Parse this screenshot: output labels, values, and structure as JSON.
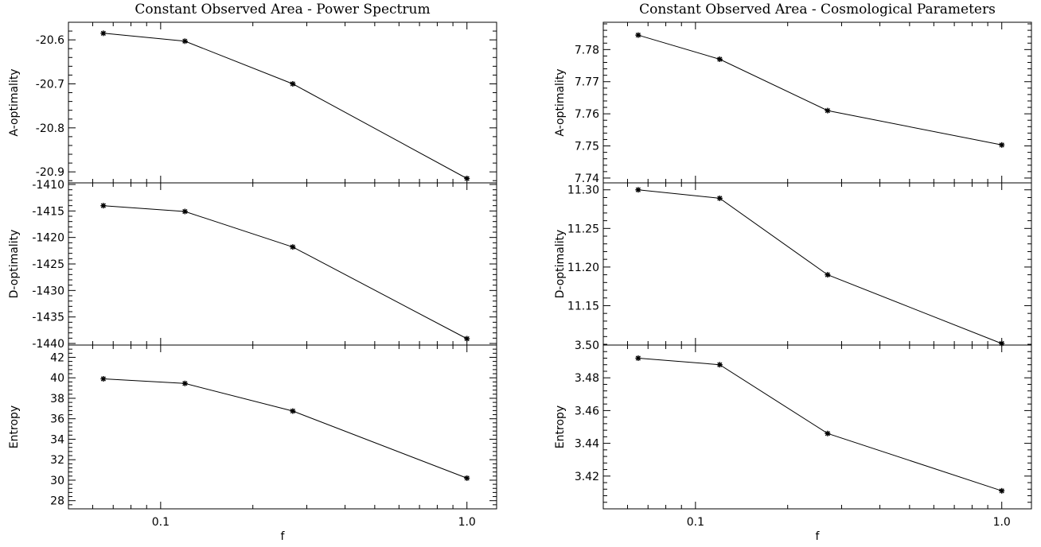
{
  "figure": {
    "panels": [
      {
        "id": "left",
        "title": "Constant Observed Area - Power Spectrum",
        "xlabel": "f"
      },
      {
        "id": "right",
        "title": "Constant Observed Area - Cosmological Parameters",
        "xlabel": "f"
      }
    ]
  },
  "chart_data": [
    {
      "type": "line",
      "panel": "left",
      "row": 0,
      "title": "Constant Observed Area - Power Spectrum",
      "xlabel": "",
      "ylabel": "A-optimality",
      "xscale": "log",
      "xlim": [
        0.05,
        1.25
      ],
      "xticks": [
        0.1,
        1.0
      ],
      "xtick_labels": [
        "",
        ""
      ],
      "ylim": [
        -20.925,
        -20.56
      ],
      "yticks": [
        -20.6,
        -20.7,
        -20.8,
        -20.9
      ],
      "ytick_labels": [
        "-20.6",
        "-20.7",
        "-20.8",
        "-20.9"
      ],
      "marker": "asterisk",
      "grid": false,
      "series": [
        {
          "x": [
            0.065,
            0.12,
            0.27,
            1.0
          ],
          "y": [
            -20.585,
            -20.603,
            -20.7,
            -20.915
          ]
        }
      ]
    },
    {
      "type": "line",
      "panel": "left",
      "row": 1,
      "xlabel": "",
      "ylabel": "D-optimality",
      "xscale": "log",
      "xlim": [
        0.05,
        1.25
      ],
      "xticks": [
        0.1,
        1.0
      ],
      "xtick_labels": [
        "",
        ""
      ],
      "ylim": [
        -1440.3,
        -1409.7
      ],
      "yticks": [
        -1410,
        -1415,
        -1420,
        -1425,
        -1430,
        -1435,
        -1440
      ],
      "ytick_labels": [
        "-1410",
        "-1415",
        "-1420",
        "-1425",
        "-1430",
        "-1435",
        "-1440"
      ],
      "marker": "asterisk",
      "grid": false,
      "series": [
        {
          "x": [
            0.065,
            0.12,
            0.27,
            1.0
          ],
          "y": [
            -1414.0,
            -1415.1,
            -1421.8,
            -1439.1
          ]
        }
      ]
    },
    {
      "type": "line",
      "panel": "left",
      "row": 2,
      "xlabel": "f",
      "ylabel": "Entropy",
      "xscale": "log",
      "xlim": [
        0.05,
        1.25
      ],
      "xticks": [
        0.1,
        1.0
      ],
      "xtick_labels": [
        "0.1",
        "1.0"
      ],
      "ylim": [
        27.2,
        43.2
      ],
      "yticks": [
        28,
        30,
        32,
        34,
        36,
        38,
        40,
        42
      ],
      "ytick_labels": [
        "28",
        "30",
        "32",
        "34",
        "36",
        "38",
        "40",
        "42"
      ],
      "marker": "asterisk",
      "grid": false,
      "series": [
        {
          "x": [
            0.065,
            0.12,
            0.27,
            1.0
          ],
          "y": [
            39.9,
            39.45,
            36.75,
            30.2
          ]
        }
      ]
    },
    {
      "type": "line",
      "panel": "right",
      "row": 0,
      "title": "Constant Observed Area - Cosmological Parameters",
      "xlabel": "",
      "ylabel": "A-optimality",
      "xscale": "log",
      "xlim": [
        0.05,
        1.25
      ],
      "xticks": [
        0.1,
        1.0
      ],
      "xtick_labels": [
        "",
        ""
      ],
      "ylim": [
        7.7385,
        7.7885
      ],
      "yticks": [
        7.74,
        7.75,
        7.76,
        7.77,
        7.78
      ],
      "ytick_labels": [
        "7.74",
        "7.75",
        "7.76",
        "7.77",
        "7.78"
      ],
      "marker": "asterisk",
      "grid": false,
      "series": [
        {
          "x": [
            0.065,
            0.12,
            0.27,
            1.0
          ],
          "y": [
            7.7845,
            7.777,
            7.761,
            7.7503
          ]
        }
      ]
    },
    {
      "type": "line",
      "panel": "right",
      "row": 1,
      "xlabel": "",
      "ylabel": "D-optimality",
      "xscale": "log",
      "xlim": [
        0.05,
        1.25
      ],
      "xticks": [
        0.1,
        1.0
      ],
      "xtick_labels": [
        "",
        ""
      ],
      "ylim": [
        11.099,
        11.309
      ],
      "yticks": [
        11.15,
        11.2,
        11.25,
        11.3
      ],
      "ytick_labels": [
        "11.15",
        "11.20",
        "11.25",
        "11.30"
      ],
      "marker": "asterisk",
      "grid": false,
      "series": [
        {
          "x": [
            0.065,
            0.12,
            0.27,
            1.0
          ],
          "y": [
            11.3,
            11.289,
            11.19,
            11.101
          ]
        }
      ]
    },
    {
      "type": "line",
      "panel": "right",
      "row": 2,
      "xlabel": "f",
      "ylabel": "Entropy",
      "xscale": "log",
      "xlim": [
        0.05,
        1.25
      ],
      "xticks": [
        0.1,
        1.0
      ],
      "xtick_labels": [
        "0.1",
        "1.0"
      ],
      "ylim": [
        3.4,
        3.5
      ],
      "yticks": [
        3.42,
        3.44,
        3.46,
        3.48,
        3.5
      ],
      "ytick_labels": [
        "3.42",
        "3.44",
        "3.46",
        "3.48",
        "3.50"
      ],
      "marker": "asterisk",
      "grid": false,
      "series": [
        {
          "x": [
            0.065,
            0.12,
            0.27,
            1.0
          ],
          "y": [
            3.492,
            3.488,
            3.446,
            3.411
          ]
        }
      ]
    }
  ]
}
